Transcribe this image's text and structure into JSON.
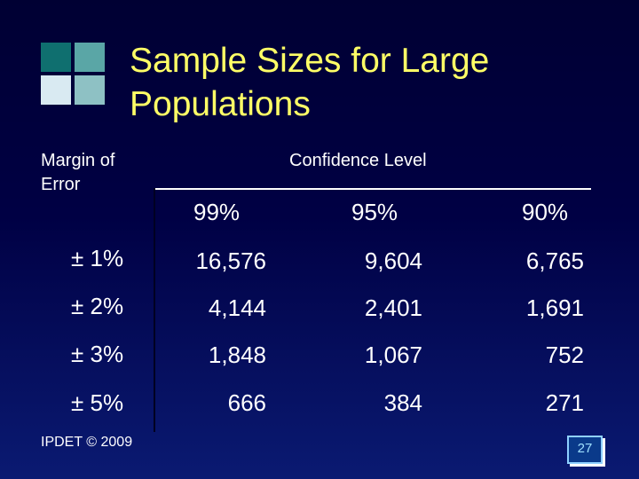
{
  "slide": {
    "title": "Sample Sizes for Large Populations",
    "margin_label": "Margin of Error",
    "confidence_label": "Confidence Level",
    "footer": "IPDET © 2009",
    "page_number": "27"
  },
  "table": {
    "headers": [
      "99%",
      "95%",
      "90%"
    ],
    "rows": [
      {
        "margin": "± 1%",
        "values": [
          "16,576",
          "9,604",
          "6,765"
        ]
      },
      {
        "margin": "± 2%",
        "values": [
          "4,144",
          "2,401",
          "1,691"
        ]
      },
      {
        "margin": "± 3%",
        "values": [
          "1,848",
          "1,067",
          "752"
        ]
      },
      {
        "margin": "± 5%",
        "values": [
          "666",
          "384",
          "271"
        ]
      }
    ]
  },
  "colors": {
    "title": "#ffff66",
    "text": "#ffffff",
    "background_top": "#000033",
    "background_bottom": "#0a1a72"
  }
}
